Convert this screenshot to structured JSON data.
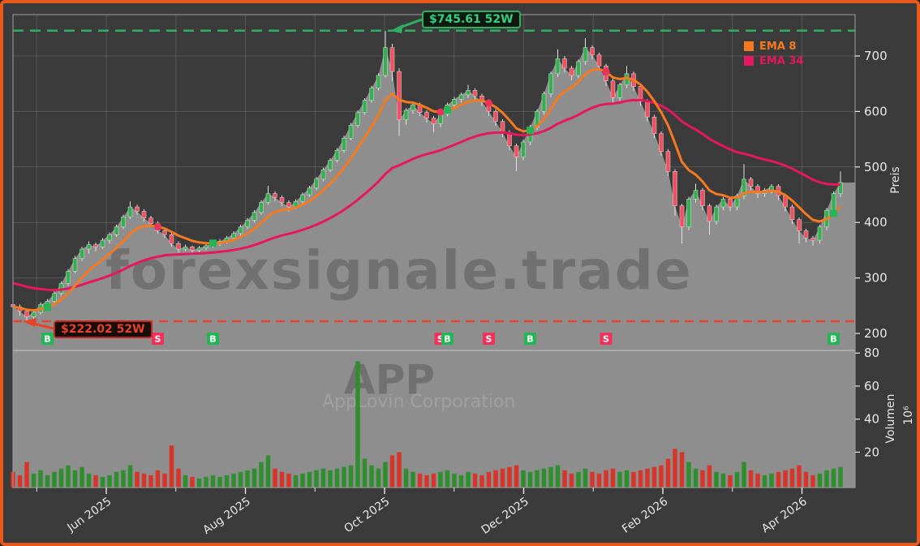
{
  "watermarks": {
    "brand": "forexsignale.trade",
    "symbol": "APP",
    "company": "AppLovin Corporation"
  },
  "legend": {
    "items": [
      {
        "label": "EMA 8",
        "color": "#f5791f"
      },
      {
        "label": "EMA 34",
        "color": "#e6175e"
      }
    ]
  },
  "annotations": {
    "high": {
      "label": "$745.61 52W",
      "value": 745.61
    },
    "low": {
      "label": "$222.02 52W",
      "value": 222.02
    }
  },
  "axes": {
    "price": {
      "title": "Preis",
      "ticks": [
        700,
        600,
        500,
        400,
        300,
        200
      ]
    },
    "volume": {
      "title": "Volumen",
      "scale": "10⁶",
      "ticks": [
        80,
        60,
        40,
        20
      ]
    },
    "x": {
      "labels": [
        "Jun 2025",
        "Aug 2025",
        "Oct 2025",
        "Dec 2025",
        "Feb 2026",
        "Apr 2026"
      ]
    }
  },
  "colors": {
    "frame_border": "#e8591c",
    "background": "#3b3b3b",
    "panel_fill": "#8e8e8e",
    "grid": "rgba(255,255,255,0.14)",
    "plot_border": "#9f9f9f",
    "separator": "#ababab",
    "up": "#33b14e",
    "down": "#f05062",
    "wick": "#e2e2e2",
    "vol_up": "#2f8f2f",
    "vol_down": "#d8352a",
    "ema8": "#f5791f",
    "ema34": "#e6175e",
    "high_line": "#2eaf63",
    "low_line": "#e8432a",
    "buy": "#25b456",
    "sell": "#f0325a",
    "axis_text": "#e8e8e8",
    "watermark_dark": "rgba(0,0,0,0.20)",
    "watermark_light": "rgba(255,255,255,0.16)"
  },
  "chart_data": {
    "type": "candlestick",
    "title": "",
    "price_range": [
      170,
      775
    ],
    "volume_range": [
      0,
      80
    ],
    "grid": true,
    "legend_position": "top-right",
    "indicators": [
      {
        "name": "EMA 8",
        "period": 8,
        "color": "#f5791f"
      },
      {
        "name": "EMA 34",
        "period": 34,
        "color": "#e6175e"
      }
    ],
    "hlines": [
      {
        "label": "$745.61 52W",
        "value": 745.61,
        "style": "dashed",
        "color": "#2eaf63"
      },
      {
        "label": "$222.02 52W",
        "value": 222.02,
        "style": "dashed",
        "color": "#e8432a"
      }
    ],
    "signals": [
      {
        "index": 5,
        "label": "B"
      },
      {
        "index": 21,
        "label": "S"
      },
      {
        "index": 29,
        "label": "B"
      },
      {
        "index": 62,
        "label": "S"
      },
      {
        "index": 63,
        "label": "B"
      },
      {
        "index": 69,
        "label": "S"
      },
      {
        "index": 75,
        "label": "B"
      },
      {
        "index": 86,
        "label": "S"
      },
      {
        "index": 119,
        "label": "B"
      }
    ],
    "x_labels": [
      "Jun 2025",
      "Aug 2025",
      "Oct 2025",
      "Dec 2025",
      "Feb 2026",
      "Apr 2026"
    ],
    "candles": [
      [
        252,
        256,
        236,
        248
      ],
      [
        248,
        252,
        232,
        240
      ],
      [
        240,
        244,
        222,
        230
      ],
      [
        230,
        242,
        226,
        238
      ],
      [
        238,
        256,
        234,
        252
      ],
      [
        252,
        262,
        248,
        258
      ],
      [
        258,
        276,
        254,
        272
      ],
      [
        272,
        294,
        268,
        290
      ],
      [
        290,
        316,
        286,
        312
      ],
      [
        312,
        340,
        308,
        335
      ],
      [
        335,
        356,
        330,
        352
      ],
      [
        352,
        366,
        344,
        360
      ],
      [
        360,
        364,
        348,
        356
      ],
      [
        356,
        372,
        352,
        368
      ],
      [
        368,
        382,
        362,
        378
      ],
      [
        378,
        396,
        374,
        392
      ],
      [
        392,
        414,
        388,
        410
      ],
      [
        410,
        438,
        406,
        428
      ],
      [
        428,
        432,
        414,
        420
      ],
      [
        420,
        424,
        402,
        408
      ],
      [
        408,
        412,
        392,
        398
      ],
      [
        398,
        402,
        380,
        385
      ],
      [
        385,
        390,
        372,
        378
      ],
      [
        378,
        382,
        356,
        362
      ],
      [
        362,
        366,
        346,
        352
      ],
      [
        352,
        360,
        348,
        356
      ],
      [
        356,
        358,
        344,
        350
      ],
      [
        350,
        358,
        346,
        354
      ],
      [
        354,
        362,
        350,
        358
      ],
      [
        358,
        366,
        354,
        362
      ],
      [
        362,
        370,
        358,
        366
      ],
      [
        366,
        376,
        362,
        372
      ],
      [
        372,
        384,
        368,
        380
      ],
      [
        380,
        396,
        376,
        392
      ],
      [
        392,
        408,
        388,
        404
      ],
      [
        404,
        422,
        400,
        418
      ],
      [
        418,
        440,
        414,
        436
      ],
      [
        436,
        466,
        432,
        452
      ],
      [
        452,
        456,
        438,
        445
      ],
      [
        445,
        449,
        430,
        436
      ],
      [
        436,
        440,
        420,
        428
      ],
      [
        428,
        442,
        424,
        438
      ],
      [
        438,
        454,
        434,
        450
      ],
      [
        450,
        466,
        446,
        462
      ],
      [
        462,
        482,
        458,
        478
      ],
      [
        478,
        499,
        474,
        495
      ],
      [
        495,
        516,
        491,
        512
      ],
      [
        512,
        534,
        508,
        530
      ],
      [
        530,
        556,
        526,
        552
      ],
      [
        552,
        579,
        548,
        575
      ],
      [
        575,
        602,
        571,
        598
      ],
      [
        598,
        624,
        594,
        620
      ],
      [
        620,
        646,
        616,
        642
      ],
      [
        642,
        669,
        638,
        665
      ],
      [
        665,
        745,
        661,
        715
      ],
      [
        715,
        722,
        655,
        672
      ],
      [
        672,
        678,
        556,
        585
      ],
      [
        585,
        606,
        576,
        602
      ],
      [
        602,
        618,
        596,
        612
      ],
      [
        612,
        616,
        592,
        598
      ],
      [
        598,
        602,
        580,
        588
      ],
      [
        588,
        592,
        562,
        578
      ],
      [
        578,
        599,
        572,
        595
      ],
      [
        595,
        616,
        591,
        612
      ],
      [
        612,
        626,
        606,
        622
      ],
      [
        622,
        634,
        616,
        630
      ],
      [
        630,
        648,
        624,
        638
      ],
      [
        638,
        642,
        622,
        628
      ],
      [
        628,
        632,
        610,
        618
      ],
      [
        618,
        622,
        592,
        600
      ],
      [
        600,
        604,
        574,
        582
      ],
      [
        582,
        586,
        554,
        562
      ],
      [
        562,
        566,
        530,
        538
      ],
      [
        538,
        542,
        492,
        518
      ],
      [
        518,
        549,
        512,
        545
      ],
      [
        545,
        576,
        539,
        572
      ],
      [
        572,
        604,
        566,
        600
      ],
      [
        600,
        636,
        594,
        632
      ],
      [
        632,
        672,
        626,
        668
      ],
      [
        668,
        712,
        662,
        695
      ],
      [
        695,
        700,
        670,
        678
      ],
      [
        678,
        682,
        656,
        665
      ],
      [
        665,
        694,
        660,
        690
      ],
      [
        690,
        732,
        684,
        715
      ],
      [
        715,
        719,
        694,
        702
      ],
      [
        702,
        706,
        674,
        682
      ],
      [
        682,
        686,
        646,
        655
      ],
      [
        655,
        659,
        616,
        625
      ],
      [
        625,
        652,
        619,
        648
      ],
      [
        648,
        682,
        642,
        668
      ],
      [
        668,
        672,
        637,
        645
      ],
      [
        645,
        649,
        610,
        618
      ],
      [
        618,
        622,
        582,
        590
      ],
      [
        590,
        594,
        552,
        560
      ],
      [
        560,
        564,
        520,
        528
      ],
      [
        528,
        532,
        484,
        492
      ],
      [
        492,
        496,
        412,
        430
      ],
      [
        430,
        434,
        362,
        392
      ],
      [
        392,
        446,
        386,
        442
      ],
      [
        442,
        470,
        436,
        458
      ],
      [
        458,
        462,
        422,
        430
      ],
      [
        430,
        434,
        378,
        402
      ],
      [
        402,
        432,
        396,
        428
      ],
      [
        428,
        446,
        422,
        442
      ],
      [
        442,
        446,
        420,
        428
      ],
      [
        428,
        452,
        422,
        448
      ],
      [
        448,
        505,
        442,
        478
      ],
      [
        478,
        482,
        458,
        465
      ],
      [
        465,
        469,
        444,
        452
      ],
      [
        452,
        462,
        446,
        458
      ],
      [
        458,
        469,
        452,
        465
      ],
      [
        465,
        469,
        440,
        448
      ],
      [
        448,
        452,
        420,
        428
      ],
      [
        428,
        432,
        397,
        405
      ],
      [
        405,
        409,
        362,
        385
      ],
      [
        385,
        389,
        364,
        372
      ],
      [
        372,
        376,
        358,
        368
      ],
      [
        368,
        396,
        362,
        392
      ],
      [
        392,
        426,
        386,
        422
      ],
      [
        422,
        456,
        416,
        452
      ],
      [
        452,
        492,
        446,
        472
      ]
    ],
    "volumes": [
      8,
      6,
      14,
      7,
      9,
      6,
      8,
      10,
      12,
      9,
      11,
      7,
      6,
      5,
      6,
      8,
      9,
      12,
      8,
      7,
      6,
      9,
      7,
      24,
      10,
      6,
      5,
      4,
      5,
      6,
      5,
      6,
      7,
      8,
      9,
      10,
      14,
      18,
      10,
      8,
      7,
      6,
      7,
      8,
      9,
      10,
      9,
      10,
      11,
      12,
      75,
      16,
      12,
      10,
      14,
      18,
      20,
      10,
      8,
      7,
      6,
      7,
      8,
      9,
      7,
      6,
      8,
      7,
      6,
      8,
      9,
      10,
      11,
      12,
      9,
      8,
      9,
      10,
      11,
      12,
      9,
      7,
      8,
      10,
      8,
      7,
      9,
      10,
      8,
      9,
      8,
      9,
      10,
      11,
      12,
      16,
      22,
      20,
      14,
      10,
      9,
      12,
      8,
      7,
      6,
      8,
      14,
      9,
      7,
      6,
      7,
      8,
      9,
      10,
      12,
      8,
      6,
      7,
      9,
      10,
      11
    ]
  }
}
